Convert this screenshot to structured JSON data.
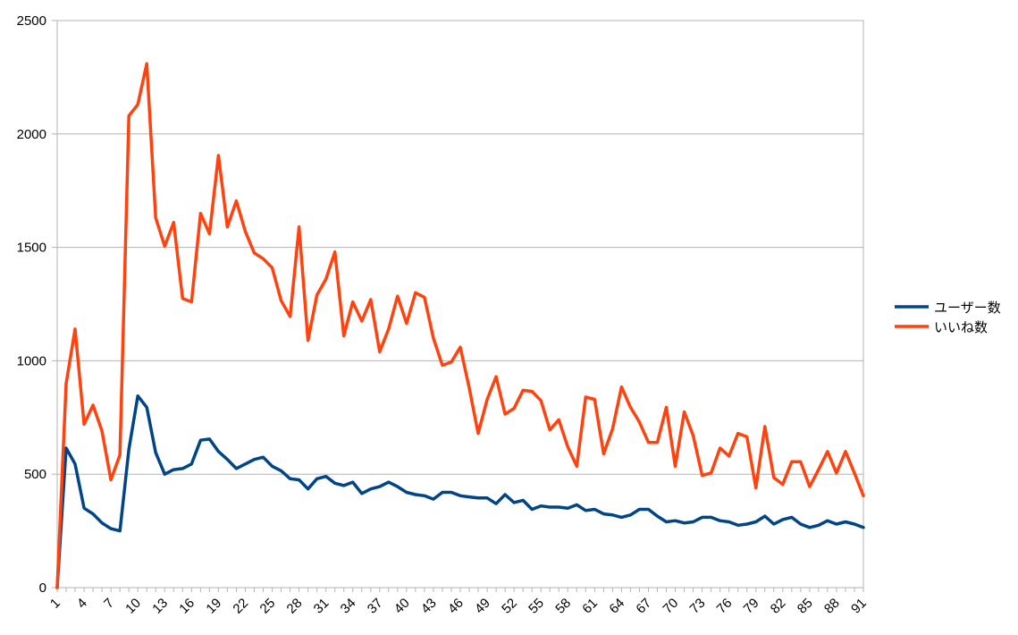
{
  "chart_data": {
    "type": "line",
    "title": "",
    "xlabel": "",
    "ylabel": "",
    "ylim": [
      0,
      2500
    ],
    "yticks": [
      0,
      500,
      1000,
      1500,
      2000,
      2500
    ],
    "xtick_labels": [
      "1",
      "4",
      "7",
      "10",
      "13",
      "16",
      "19",
      "22",
      "25",
      "28",
      "31",
      "34",
      "37",
      "40",
      "43",
      "46",
      "49",
      "52",
      "55",
      "58",
      "61",
      "64",
      "67",
      "70",
      "73",
      "76",
      "79",
      "82",
      "85",
      "88",
      "91"
    ],
    "grid": "horizontal",
    "legend_position": "right",
    "x": [
      1,
      2,
      3,
      4,
      5,
      6,
      7,
      8,
      9,
      10,
      11,
      12,
      13,
      14,
      15,
      16,
      17,
      18,
      19,
      20,
      21,
      22,
      23,
      24,
      25,
      26,
      27,
      28,
      29,
      30,
      31,
      32,
      33,
      34,
      35,
      36,
      37,
      38,
      39,
      40,
      41,
      42,
      43,
      44,
      45,
      46,
      47,
      48,
      49,
      50,
      51,
      52,
      53,
      54,
      55,
      56,
      57,
      58,
      59,
      60,
      61,
      62,
      63,
      64,
      65,
      66,
      67,
      68,
      69,
      70,
      71,
      72,
      73,
      74,
      75,
      76,
      77,
      78,
      79,
      80,
      81,
      82,
      83,
      84,
      85,
      86,
      87,
      88,
      89,
      90,
      91
    ],
    "series": [
      {
        "name": "ユーザー数",
        "color": "#004586",
        "values": [
          0,
          615,
          545,
          350,
          325,
          285,
          260,
          250,
          610,
          845,
          795,
          595,
          500,
          520,
          525,
          545,
          650,
          655,
          600,
          565,
          525,
          545,
          565,
          575,
          535,
          515,
          480,
          475,
          435,
          480,
          490,
          460,
          450,
          465,
          415,
          435,
          445,
          465,
          445,
          420,
          410,
          405,
          390,
          420,
          420,
          405,
          400,
          395,
          395,
          370,
          410,
          375,
          385,
          345,
          360,
          355,
          355,
          350,
          365,
          340,
          345,
          325,
          320,
          310,
          320,
          345,
          345,
          315,
          290,
          295,
          285,
          290,
          310,
          310,
          295,
          290,
          275,
          280,
          290,
          315,
          280,
          300,
          310,
          280,
          265,
          275,
          295,
          280,
          290,
          280,
          265
        ]
      },
      {
        "name": "いいね数",
        "color": "#ff420e",
        "values": [
          0,
          900,
          1140,
          720,
          805,
          690,
          475,
          585,
          2080,
          2130,
          2310,
          1630,
          1505,
          1610,
          1275,
          1260,
          1650,
          1560,
          1905,
          1590,
          1705,
          1570,
          1475,
          1450,
          1410,
          1265,
          1195,
          1590,
          1090,
          1290,
          1360,
          1480,
          1110,
          1260,
          1175,
          1270,
          1040,
          1140,
          1285,
          1165,
          1300,
          1280,
          1100,
          980,
          995,
          1060,
          880,
          680,
          830,
          930,
          765,
          790,
          870,
          865,
          825,
          695,
          740,
          620,
          535,
          840,
          830,
          590,
          700,
          885,
          795,
          730,
          640,
          640,
          795,
          535,
          775,
          670,
          495,
          505,
          615,
          580,
          680,
          665,
          440,
          710,
          485,
          455,
          555,
          555,
          445,
          520,
          600,
          505,
          600,
          505,
          405
        ]
      }
    ]
  }
}
